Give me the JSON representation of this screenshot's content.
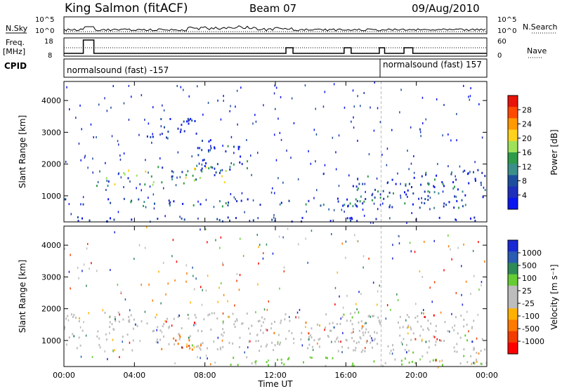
{
  "header": {
    "station": "King Salmon (fitACF)",
    "beam": "Beam 07",
    "date": "09/Aug/2010"
  },
  "left_labels": {
    "nsky": "N.Sky",
    "freq_line1": "Freq.",
    "freq_line2": "[MHz]",
    "cpid": "CPID"
  },
  "right_labels": {
    "nsearch": "N.Search",
    "nave": "Nave"
  },
  "cpid_segments": [
    {
      "label": "normalsound (fast) -157",
      "start_hour": 0
    },
    {
      "label": "normalsound (fast) 157",
      "start_hour": 18
    }
  ],
  "noise_axis": {
    "ticks_left": [
      "10^5",
      "10^0"
    ],
    "ticks_right": [
      "10^5",
      "10^0"
    ]
  },
  "freq_axis": {
    "ticks_left": [
      "18",
      "8"
    ],
    "ticks_right": [
      "60",
      "0"
    ]
  },
  "chart_data": [
    {
      "type": "heatmap",
      "title": "",
      "xlabel": "",
      "ylabel": "Slant Range [km]",
      "xlim": [
        0,
        24
      ],
      "ylim": [
        180,
        4600
      ],
      "x_ticks": [
        0,
        4,
        8,
        12,
        16,
        20,
        24
      ],
      "y_ticks": [
        1000,
        2000,
        3000,
        4000
      ],
      "y_tick_labels": [
        "1000",
        "2000",
        "3000",
        "4000"
      ],
      "colorbar": {
        "label": "Power [dB]",
        "tick_labels": [
          "28",
          "24",
          "20",
          "16",
          "12",
          "8",
          "4"
        ],
        "colors": [
          "#e8140a",
          "#ff4a00",
          "#ff9a00",
          "#ffd21e",
          "#9ee25a",
          "#2e9b4a",
          "#3b8f8a",
          "#1d4e9e",
          "#1f2ebb",
          "#0a16f0"
        ]
      },
      "regions": [
        {
          "name": "band_low",
          "hours": [
            0,
            18
          ],
          "range_km": [
            650,
            900
          ],
          "level": "medium"
        },
        {
          "name": "band_mid",
          "hours": [
            1.8,
            9.5
          ],
          "range_km": [
            1300,
            1900
          ],
          "level": "high"
        },
        {
          "name": "arc",
          "hours": [
            7.5,
            10.5
          ],
          "range_km": [
            1800,
            2800
          ],
          "level": "medium"
        },
        {
          "name": "upper_patch",
          "hours": [
            4.5,
            7.5
          ],
          "range_km": [
            2800,
            3500
          ],
          "level": "low"
        },
        {
          "name": "evening",
          "hours": [
            16.2,
            24
          ],
          "range_km": [
            600,
            1800
          ],
          "level": "medium"
        },
        {
          "name": "ground_line",
          "hours": [
            0,
            24
          ],
          "range_km": [
            180,
            320
          ],
          "level": "low"
        }
      ]
    },
    {
      "type": "heatmap",
      "title": "",
      "xlabel": "Time UT",
      "ylabel": "Slant Range [km]",
      "xlim": [
        0,
        24
      ],
      "ylim": [
        180,
        4600
      ],
      "x_ticks": [
        0,
        4,
        8,
        12,
        16,
        20,
        24
      ],
      "x_tick_labels": [
        "00:00",
        "04:00",
        "08:00",
        "12:00",
        "16:00",
        "20:00",
        "00:00"
      ],
      "y_ticks": [
        1000,
        2000,
        3000,
        4000
      ],
      "y_tick_labels": [
        "1000",
        "2000",
        "3000",
        "4000"
      ],
      "colorbar": {
        "label": "Velocity [m s⁻¹]",
        "tick_labels": [
          "1000",
          "500",
          "100",
          "25",
          "-25",
          "-100",
          "-500",
          "-1000"
        ],
        "colors": [
          "#1a2ad4",
          "#2a5cb2",
          "#2e8b57",
          "#66cc33",
          "#bdbdbd",
          "#bdbdbd",
          "#ffb100",
          "#ff7a00",
          "#f23c00",
          "#ff0000"
        ]
      },
      "regions": [
        {
          "name": "gray_band",
          "hours": [
            0,
            18
          ],
          "range_km": [
            650,
            1900
          ],
          "level": "ground_scatter"
        },
        {
          "name": "orange_patch",
          "hours": [
            5.5,
            8.2
          ],
          "range_km": [
            700,
            1150
          ],
          "level": "negative"
        },
        {
          "name": "evening_gray",
          "hours": [
            16.2,
            24
          ],
          "range_km": [
            600,
            1800
          ],
          "level": "ground_scatter"
        },
        {
          "name": "green_near",
          "hours": [
            9,
            24
          ],
          "range_km": [
            180,
            500
          ],
          "level": "small_positive"
        }
      ]
    }
  ]
}
